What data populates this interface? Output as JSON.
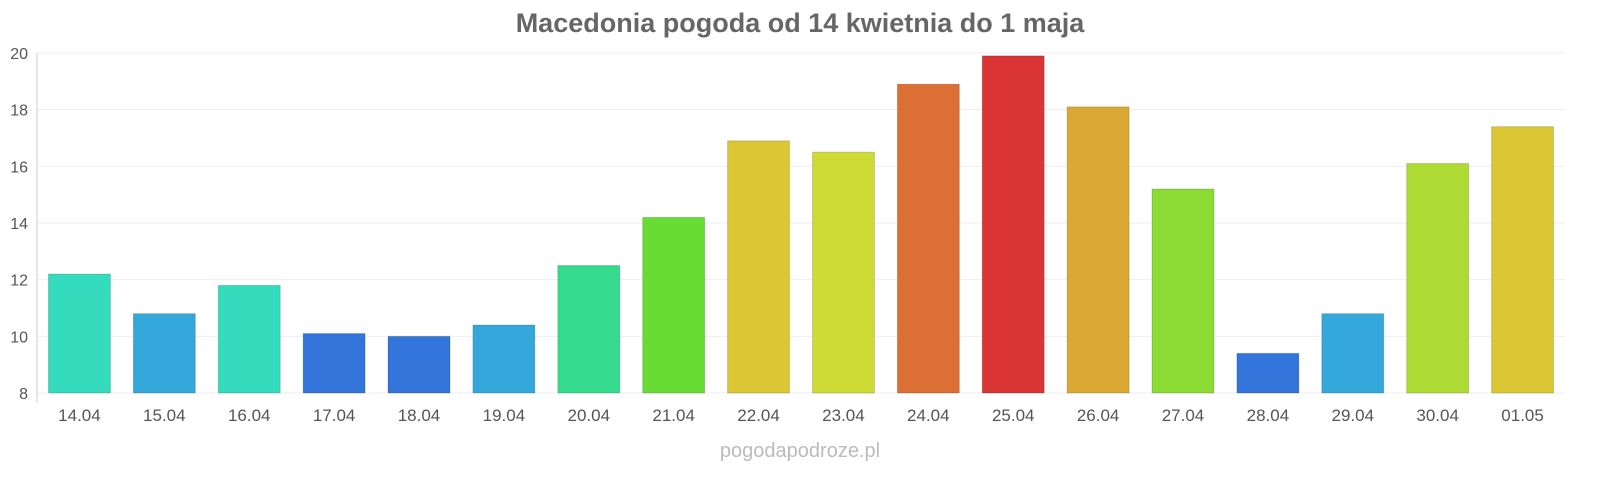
{
  "chart_data": {
    "type": "bar",
    "title": "Macedonia pogoda od 14 kwietnia do 1 maja",
    "xlabel": "",
    "ylabel": "",
    "ylim": [
      8,
      20
    ],
    "yticks": [
      8,
      10,
      12,
      14,
      16,
      18,
      20
    ],
    "grid": true,
    "categories": [
      "14.04",
      "15.04",
      "16.04",
      "17.04",
      "18.04",
      "19.04",
      "20.04",
      "21.04",
      "22.04",
      "23.04",
      "24.04",
      "25.04",
      "26.04",
      "27.04",
      "28.04",
      "29.04",
      "30.04",
      "01.05"
    ],
    "values": [
      12.2,
      10.8,
      11.8,
      10.1,
      10.0,
      10.4,
      12.5,
      14.2,
      16.9,
      16.5,
      18.9,
      19.9,
      18.1,
      15.2,
      9.4,
      10.8,
      16.1,
      17.4
    ],
    "colors": [
      "#34dbbc",
      "#34a7db",
      "#34dbbc",
      "#3375db",
      "#3375db",
      "#34a7db",
      "#34db8c",
      "#68db34",
      "#dbc734",
      "#cddb34",
      "#db6f34",
      "#db3434",
      "#dba834",
      "#8bdb34",
      "#3375db",
      "#34a7db",
      "#addb34",
      "#dbc734"
    ]
  },
  "credit": "pogodapodroze.pl"
}
